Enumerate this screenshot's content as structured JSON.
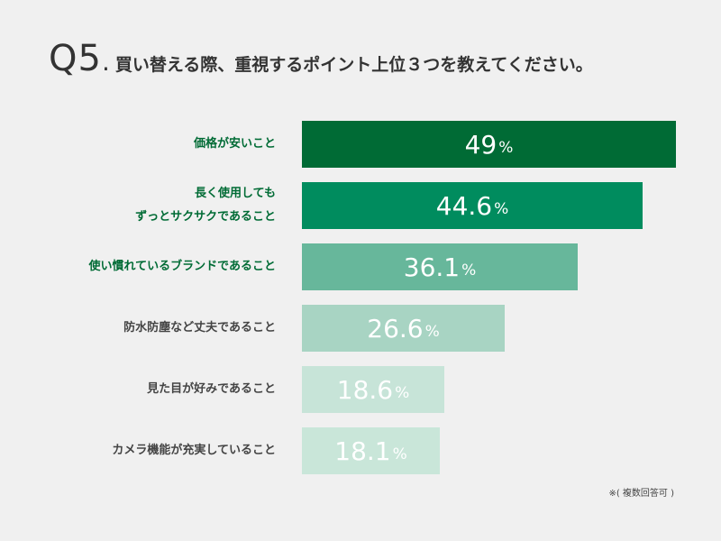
{
  "header": {
    "question_number": "Q5",
    "question_dot": ".",
    "question_text": "買い替える際、重視するポイント上位３つを教えてください。"
  },
  "chart_data": {
    "type": "bar",
    "orientation": "horizontal",
    "categories": [
      [
        "価格が安いこと"
      ],
      [
        "長く使用しても",
        "ずっとサクサクであること"
      ],
      [
        "使い慣れているブランドであること"
      ],
      [
        "防水防塵など丈夫であること"
      ],
      [
        "見た目が好みであること"
      ],
      [
        "カメラ機能が充実していること"
      ]
    ],
    "values": [
      49,
      44.6,
      36.1,
      26.6,
      18.6,
      18.1
    ],
    "value_labels": [
      "49",
      "44.6",
      "36.1",
      "26.6",
      "18.6",
      "18.1"
    ],
    "unit": "%",
    "bar_colors": [
      "#006b35",
      "#008c5e",
      "#67b79b",
      "#a8d4c3",
      "#c7e4d8",
      "#c9e6d9"
    ],
    "label_colors": [
      "#006b35",
      "#006b35",
      "#006b35",
      "#444444",
      "#444444",
      "#444444"
    ],
    "xlim": [
      0,
      49
    ]
  },
  "note": "※( 複数回答可 )"
}
